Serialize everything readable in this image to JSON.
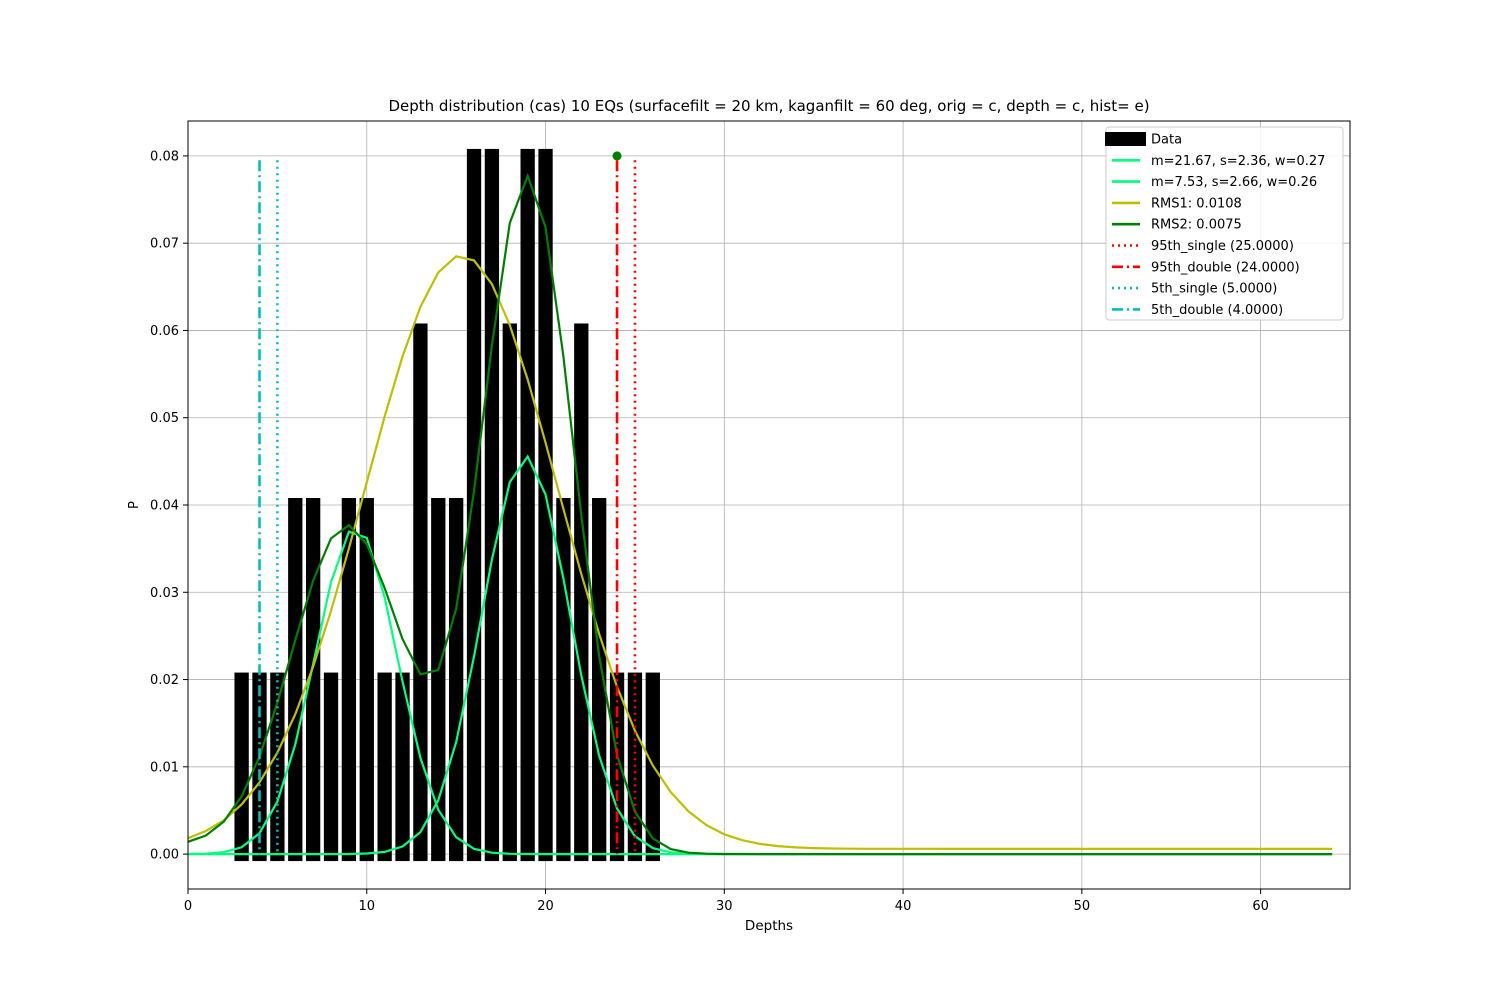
{
  "chart_data": {
    "type": "bar+line",
    "title": "Depth distribution (cas) 10 EQs (surfacefilt = 20 km, kaganfilt = 60 deg, orig = c, depth = c, hist= e)",
    "xlabel": "Depths",
    "ylabel": "P",
    "xlim": [
      0,
      65
    ],
    "ylim": [
      -0.004,
      0.084
    ],
    "x_ticks": [
      0,
      10,
      20,
      30,
      40,
      50,
      60
    ],
    "y_ticks": [
      0.0,
      0.01,
      0.02,
      0.03,
      0.04,
      0.05,
      0.06,
      0.07,
      0.08
    ],
    "x_tick_labels": [
      "0",
      "10",
      "20",
      "30",
      "40",
      "50",
      "60"
    ],
    "y_tick_labels": [
      "0.00",
      "0.01",
      "0.02",
      "0.03",
      "0.04",
      "0.05",
      "0.06",
      "0.07",
      "0.08"
    ],
    "grid": true,
    "legend_position": "top-right",
    "colors": {
      "bars": "#000000",
      "gauss": "#00ff7f",
      "rms1": "#bfbf00",
      "rms2": "#008000",
      "p95": "#ff0000",
      "p5": "#00bfbf"
    },
    "bars": {
      "name": "Data",
      "bottom": -0.0008,
      "x": [
        3,
        4,
        5,
        6,
        7,
        8,
        9,
        10,
        11,
        12,
        13,
        14,
        15,
        16,
        17,
        18,
        19,
        20,
        21,
        22,
        23,
        24,
        25,
        26
      ],
      "values": [
        0.0208,
        0.0208,
        0.0208,
        0.0408,
        0.0408,
        0.0208,
        0.0408,
        0.0408,
        0.0208,
        0.0208,
        0.0608,
        0.0408,
        0.0408,
        0.0808,
        0.0808,
        0.0608,
        0.0808,
        0.0808,
        0.0408,
        0.0608,
        0.0408,
        0.0208,
        0.0208,
        0.0208
      ]
    },
    "series": [
      {
        "name": "m=21.67, s=2.36, w=0.27",
        "kind": "gaussian",
        "mean": 21.67,
        "sigma": 2.36,
        "amp": 0.0456,
        "center": 18.9
      },
      {
        "name": "m=7.53, s=2.66, w=0.26",
        "kind": "gaussian",
        "mean": 7.53,
        "sigma": 2.66,
        "amp": 0.0375,
        "center": 9.4
      },
      {
        "name": "RMS1: 0.0108",
        "kind": "gaussian-single",
        "amp": 0.068,
        "center": 15.3,
        "sigma": 5.4
      },
      {
        "name": "RMS2: 0.0075",
        "kind": "gaussian-sum"
      }
    ],
    "vlines": [
      {
        "name": "95th_single (25.0000)",
        "x": 25,
        "style": "dotted",
        "color": "#ff0000"
      },
      {
        "name": "95th_double (24.0000)",
        "x": 24,
        "style": "dashdot",
        "color": "#ff0000"
      },
      {
        "name": "5th_single (5.0000)",
        "x": 5,
        "style": "dotted",
        "color": "#00bfbf"
      },
      {
        "name": "5th_double (4.0000)",
        "x": 4,
        "style": "dashdot",
        "color": "#00bfbf"
      }
    ],
    "vline_top": 0.0795,
    "marker": {
      "x": 24,
      "y": 0.08,
      "color": "#008000"
    },
    "legend": [
      "Data",
      "m=21.67, s=2.36, w=0.27",
      "m=7.53, s=2.66, w=0.26",
      "RMS1: 0.0108",
      "RMS2: 0.0075",
      "95th_single (25.0000)",
      "95th_double (24.0000)",
      "5th_single (5.0000)",
      "5th_double (4.0000)"
    ]
  }
}
